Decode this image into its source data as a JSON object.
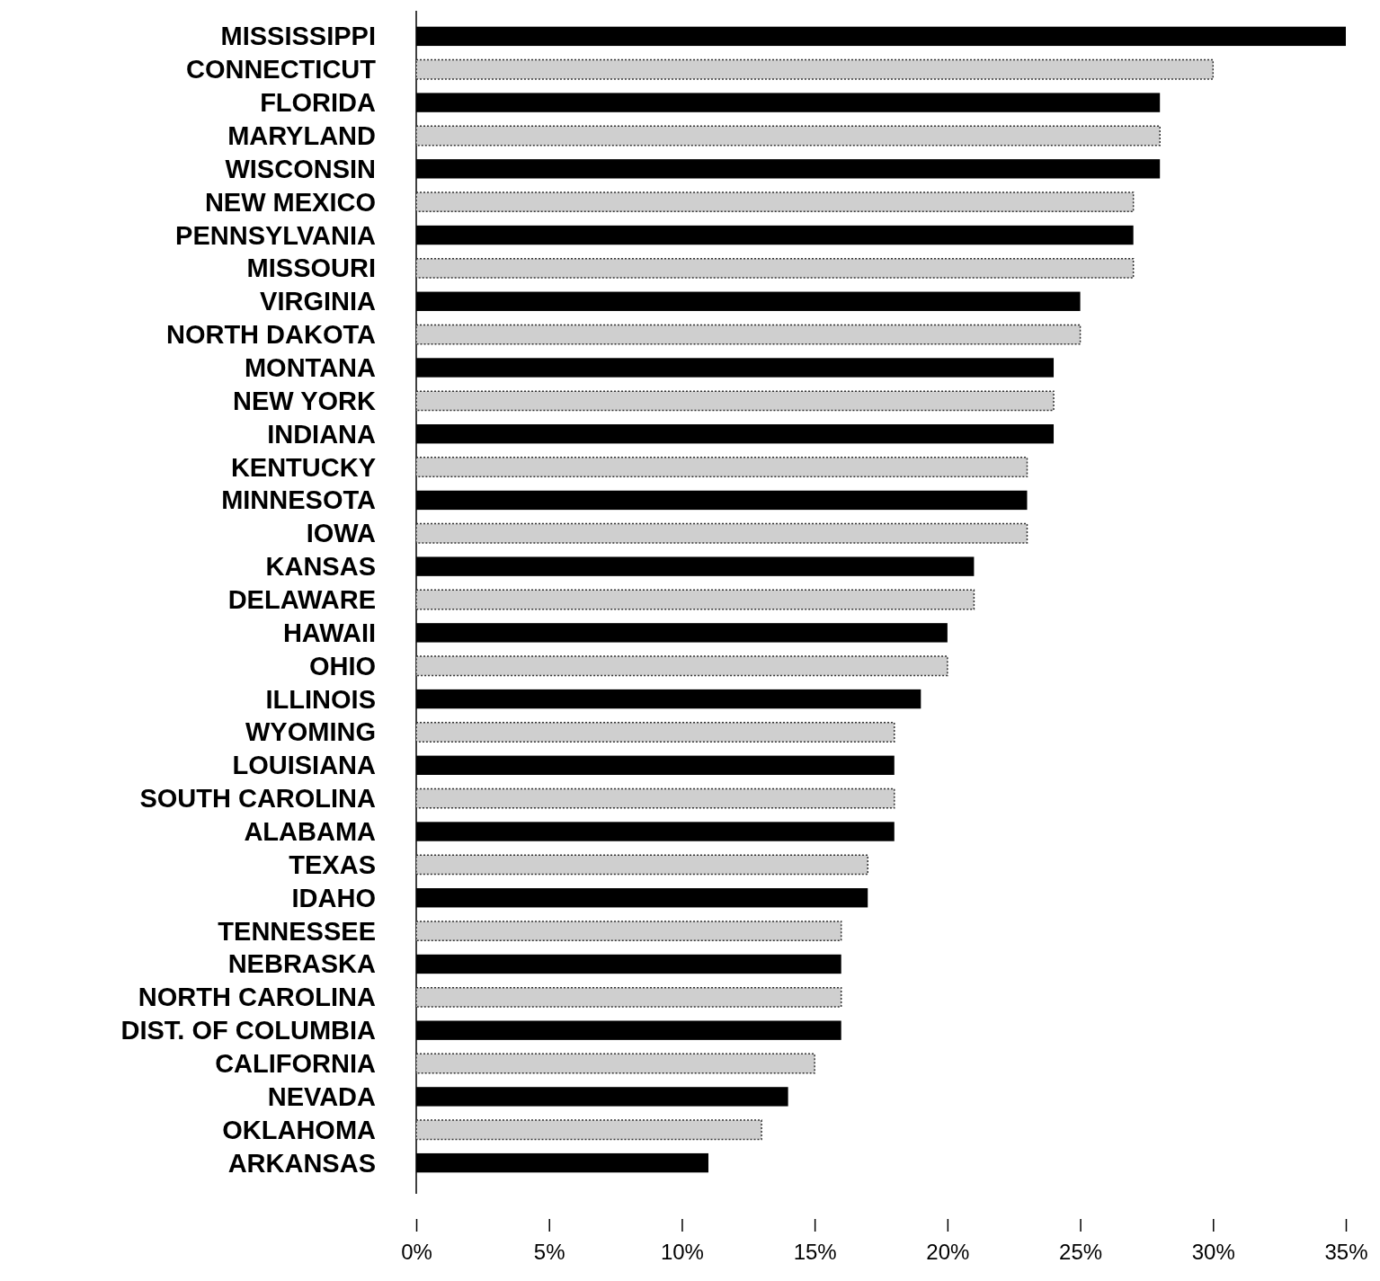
{
  "chart_data": {
    "type": "bar",
    "orientation": "horizontal",
    "categories": [
      "MISSISSIPPI",
      "CONNECTICUT",
      "FLORIDA",
      "MARYLAND",
      "WISCONSIN",
      "NEW MEXICO",
      "PENNSYLVANIA",
      "MISSOURI",
      "VIRGINIA",
      "NORTH DAKOTA",
      "MONTANA",
      "NEW YORK",
      "INDIANA",
      "KENTUCKY",
      "MINNESOTA",
      "IOWA",
      "KANSAS",
      "DELAWARE",
      "HAWAII",
      "OHIO",
      "ILLINOIS",
      "WYOMING",
      "LOUISIANA",
      "SOUTH CAROLINA",
      "ALABAMA",
      "TEXAS",
      "IDAHO",
      "TENNESSEE",
      "NEBRASKA",
      "NORTH CAROLINA",
      "DIST. OF COLUMBIA",
      "CALIFORNIA",
      "NEVADA",
      "OKLAHOMA",
      "ARKANSAS"
    ],
    "values": [
      35,
      30,
      28,
      28,
      28,
      27,
      27,
      27,
      25,
      25,
      24,
      24,
      24,
      23,
      23,
      23,
      21,
      21,
      20,
      20,
      19,
      18,
      18,
      18,
      18,
      17,
      17,
      16,
      16,
      16,
      16,
      15,
      14,
      13,
      11
    ],
    "colors": [
      "#000000",
      "#cfcfcf",
      "#000000",
      "#cfcfcf",
      "#000000",
      "#cfcfcf",
      "#000000",
      "#cfcfcf",
      "#000000",
      "#cfcfcf",
      "#000000",
      "#cfcfcf",
      "#000000",
      "#cfcfcf",
      "#000000",
      "#cfcfcf",
      "#000000",
      "#cfcfcf",
      "#000000",
      "#cfcfcf",
      "#000000",
      "#cfcfcf",
      "#000000",
      "#cfcfcf",
      "#000000",
      "#cfcfcf",
      "#000000",
      "#cfcfcf",
      "#000000",
      "#cfcfcf",
      "#000000",
      "#cfcfcf",
      "#000000",
      "#cfcfcf",
      "#000000"
    ],
    "xlim": [
      0,
      35
    ],
    "xticks": [
      {
        "value": 0,
        "label": "0%"
      },
      {
        "value": 5,
        "label": "5%"
      },
      {
        "value": 10,
        "label": "10%"
      },
      {
        "value": 15,
        "label": "15%"
      },
      {
        "value": 20,
        "label": "20%"
      },
      {
        "value": 25,
        "label": "25%"
      },
      {
        "value": 30,
        "label": "30%"
      },
      {
        "value": 35,
        "label": "35%"
      }
    ],
    "grid": false
  }
}
